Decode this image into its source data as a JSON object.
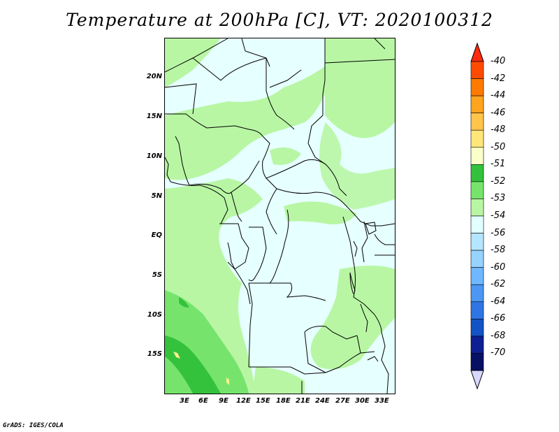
{
  "title": "Temperature at 200hPa [C], VT: 2020100312",
  "footer": "GrADS: IGES/COLA",
  "latitude_labels": [
    "20N",
    "15N",
    "10N",
    "5N",
    "EQ",
    "5S",
    "10S",
    "15S"
  ],
  "longitude_labels": [
    "3E",
    "6E",
    "9E",
    "12E",
    "15E",
    "18E",
    "21E",
    "24E",
    "27E",
    "30E",
    "33E"
  ],
  "colorbar": {
    "labels": [
      "-40",
      "-42",
      "-44",
      "-46",
      "-48",
      "-50",
      "-51",
      "-52",
      "-53",
      "-54",
      "-56",
      "-58",
      "-60",
      "-62",
      "-64",
      "-66",
      "-68",
      "-70"
    ],
    "colors": [
      "#ff2a10",
      "#ff4b00",
      "#ff7a00",
      "#ffa41f",
      "#ffc44a",
      "#ffe67a",
      "#fbffc8",
      "#34c23c",
      "#76e46c",
      "#b8f6a4",
      "#e2ffff",
      "#b4e6ff",
      "#96d3ff",
      "#6fb7ff",
      "#4b97f3",
      "#2f75e3",
      "#1453c5",
      "#0d1f92",
      "#071064",
      "#d8d8ff"
    ]
  },
  "palette": {
    "background": "#e6ffff",
    "light_green": "#b8f6a4",
    "mid_green": "#76e46c",
    "dark_green": "#34c23c",
    "yellow": "#fff08c"
  }
}
